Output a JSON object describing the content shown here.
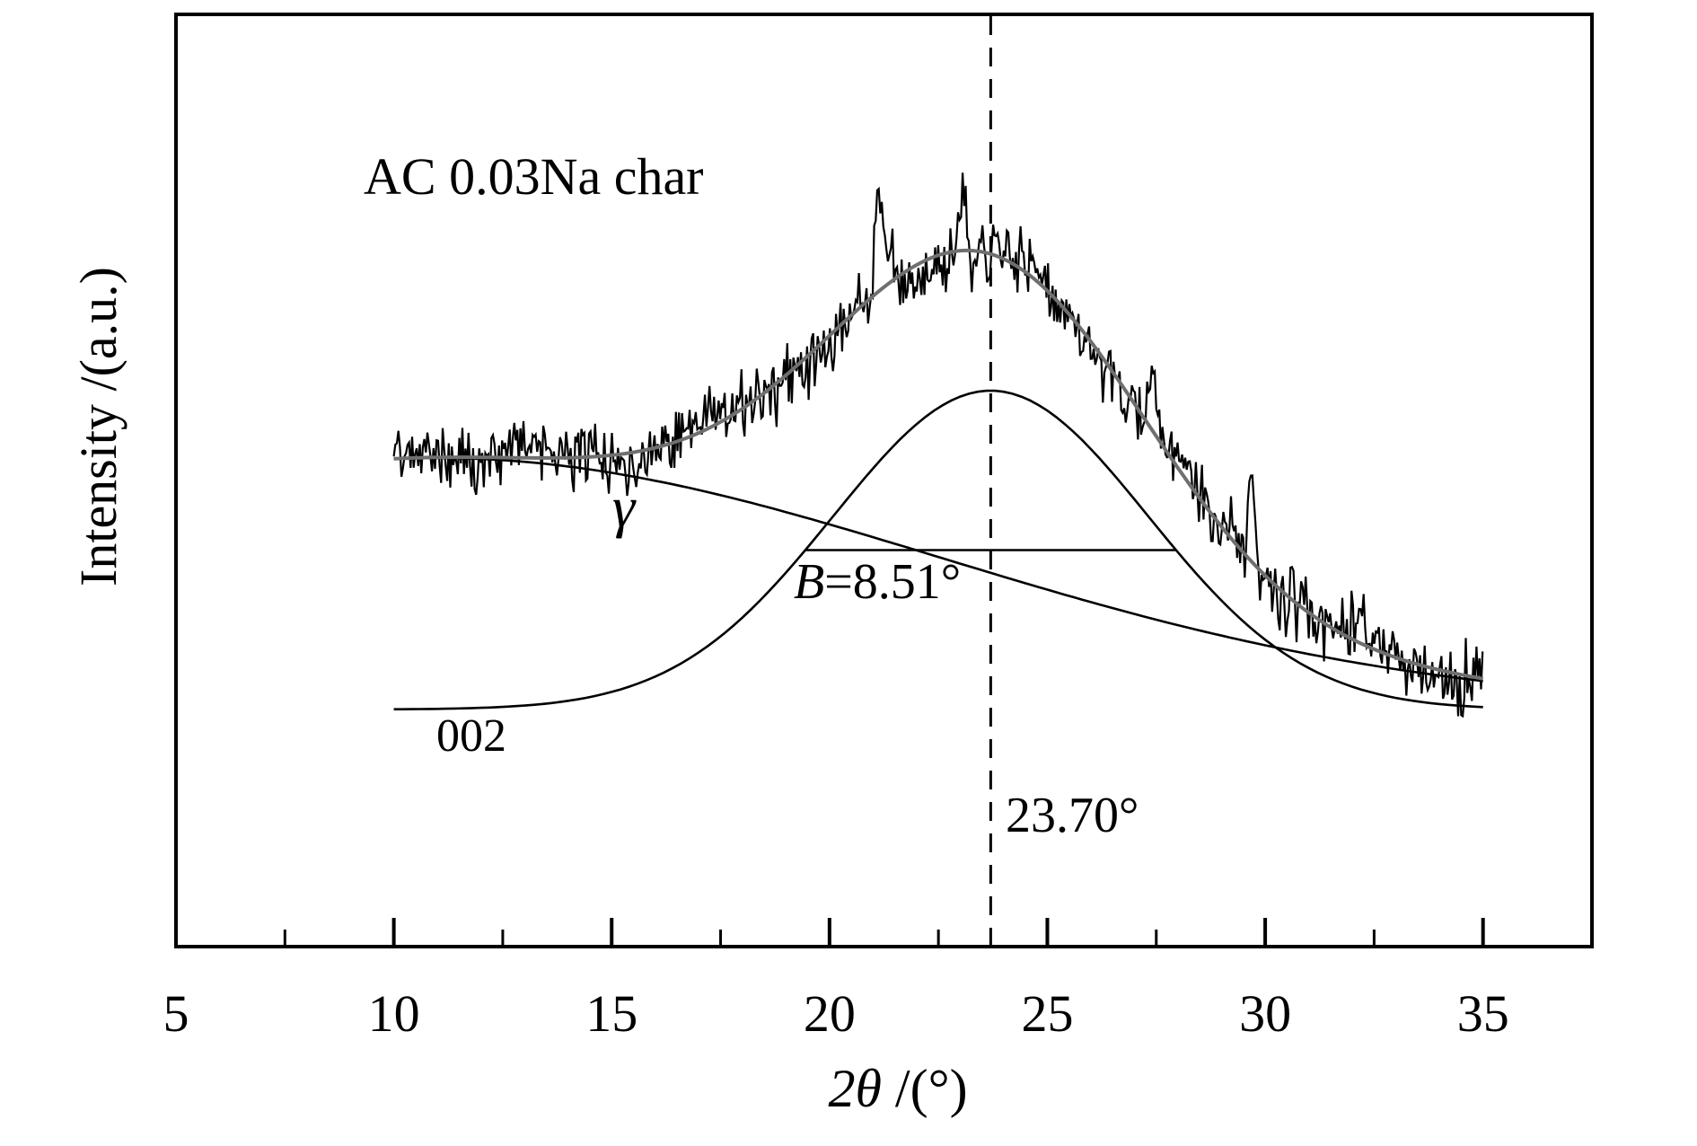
{
  "chart_data": {
    "type": "line",
    "title": "AC 0.03Na char",
    "xlabel": "2θ /(°)",
    "xlabel_parts": [
      {
        "t": "2",
        "i": 1
      },
      {
        "t": "θ",
        "i": 1
      },
      {
        "t": " /(°)",
        "i": 0
      }
    ],
    "ylabel": "Intensity /(a.u.)",
    "xlim": [
      5,
      37.5
    ],
    "x_ticks_major": [
      5,
      10,
      15,
      20,
      25,
      30,
      35
    ],
    "x_ticks_minor": [
      7.5,
      12.5,
      17.5,
      22.5,
      27.5,
      32.5
    ],
    "y_axis": "arbitrary units, no ticks",
    "grid": false,
    "legend": "none",
    "data_x_range": [
      10,
      35
    ],
    "annotations": {
      "gamma_label": "γ",
      "band_002_label": "002",
      "fwhm_label_parts": [
        {
          "t": "B",
          "i": 1
        },
        {
          "t": "=8.51°",
          "i": 0
        }
      ],
      "fwhm_label": "B=8.51°",
      "peak_center_label": "23.70°"
    },
    "series": [
      {
        "name": "experimental XRD trace (noisy)",
        "color": "#000000"
      },
      {
        "name": "fitted envelope",
        "color": "#6f6f6f"
      },
      {
        "name": "002 band (Gaussian, center 23.70°, FWHM 8.51°)",
        "color": "#000000"
      },
      {
        "name": "γ band (broad background)",
        "color": "#000000"
      }
    ],
    "fit": {
      "baseline_au": 790,
      "peak_002": {
        "center_deg": 23.7,
        "fwhm_deg": 8.51,
        "amplitude_au": 355
      },
      "gamma_band": {
        "center_deg": 11.0,
        "sigma_deg": 11.5,
        "amplitude_au": 280
      }
    },
    "vline_x_deg": 23.7,
    "fwhm_line": {
      "x1_deg": 19.445,
      "x2_deg": 27.955,
      "y_au": 612.5
    },
    "noise_sigma_au": 18.5,
    "sharp_spikes": [
      {
        "x_deg": 21.15,
        "height_au": 100,
        "width_deg": 0.13
      },
      {
        "x_deg": 23.05,
        "height_au": 85,
        "width_deg": 0.1
      },
      {
        "x_deg": 27.4,
        "height_au": 75,
        "width_deg": 0.09
      },
      {
        "x_deg": 29.7,
        "height_au": 105,
        "width_deg": 0.09
      },
      {
        "x_deg": 32.2,
        "height_au": 50,
        "width_deg": 0.1
      }
    ]
  }
}
